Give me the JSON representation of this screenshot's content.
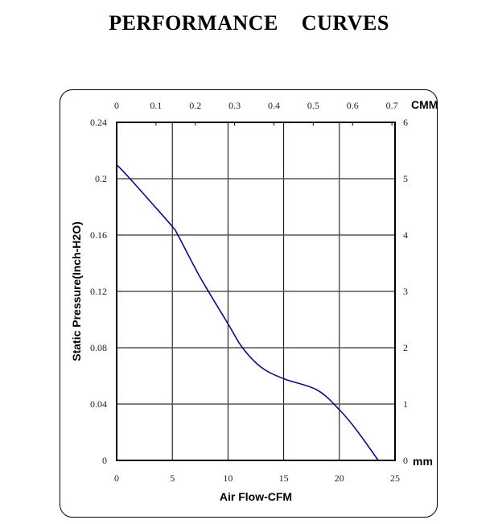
{
  "title": "PERFORMANCE    CURVES",
  "chart_data": {
    "type": "line",
    "title": "PERFORMANCE CURVES",
    "xlabel": "Air Flow-CFM",
    "ylabel": "Static Pressure(Inch-H2O)",
    "xlim": [
      0,
      25
    ],
    "ylim": [
      0,
      0.24
    ],
    "x_ticks": [
      "0",
      "5",
      "10",
      "15",
      "20",
      "25"
    ],
    "y_ticks": [
      "0",
      "0.04",
      "0.08",
      "0.12",
      "0.16",
      "0.2",
      "0.24"
    ],
    "top_axis": {
      "unit": "CMM",
      "ticks": [
        "0",
        "0.1",
        "0.2",
        "0.3",
        "0.4",
        "0.5",
        "0.6",
        "0.7"
      ]
    },
    "right_axis": {
      "unit": "mm",
      "ticks": [
        "0",
        "1",
        "2",
        "3",
        "4",
        "5",
        "6"
      ]
    },
    "grid": true,
    "color": "#0a0a8c",
    "series": [
      {
        "name": "curve",
        "x": [
          0,
          1.2,
          3,
          5,
          5.5,
          7.5,
          10,
          11.3,
          13,
          15,
          18,
          20,
          21.5,
          23.5
        ],
        "y": [
          0.21,
          0.2,
          0.184,
          0.166,
          0.16,
          0.13,
          0.097,
          0.08,
          0.066,
          0.058,
          0.05,
          0.036,
          0.022,
          0
        ]
      }
    ]
  }
}
